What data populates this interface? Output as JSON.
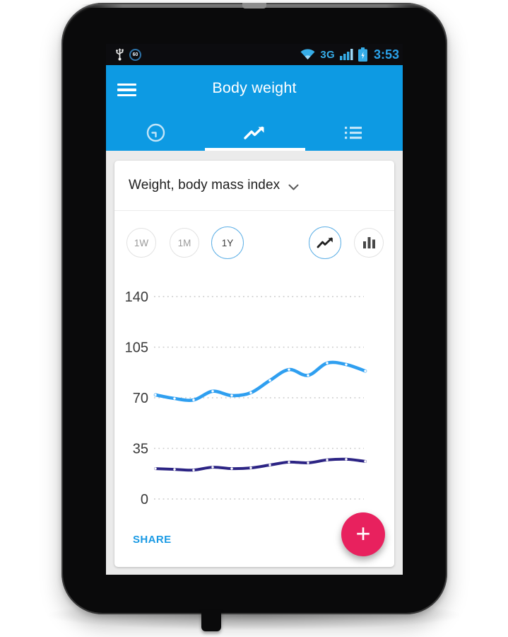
{
  "status_bar": {
    "badge": "60",
    "network_label": "3G",
    "time": "3:53",
    "icons": [
      "usb-icon",
      "circle-badge-icon",
      "wifi-icon",
      "signal-strength-icon",
      "battery-charging-icon"
    ]
  },
  "app_bar": {
    "title": "Body weight",
    "menu_icon": "hamburger-icon"
  },
  "tab_bar": {
    "tabs": [
      {
        "id": "history",
        "icon": "clock-icon",
        "active": false
      },
      {
        "id": "trend",
        "icon": "trend-line-icon",
        "active": true
      },
      {
        "id": "list",
        "icon": "list-icon",
        "active": false
      }
    ]
  },
  "card": {
    "metric_selector": {
      "label": "Weight, body mass index",
      "icon": "chevron-down-icon"
    },
    "range_buttons": [
      {
        "label": "1W",
        "selected": false
      },
      {
        "label": "1M",
        "selected": false
      },
      {
        "label": "1Y",
        "selected": true
      }
    ],
    "chart_type_toggles": [
      {
        "id": "line",
        "icon": "line-chart-icon",
        "selected": true
      },
      {
        "id": "bar",
        "icon": "bar-chart-icon",
        "selected": false
      }
    ],
    "share_label": "SHARE",
    "fab_label": "+"
  },
  "chart_data": {
    "type": "line",
    "title": "Weight, body mass index (1Y view)",
    "xlabel": "",
    "ylabel": "",
    "x_tick_labels_visible": false,
    "y_ticks": [
      0,
      35,
      70,
      105,
      140
    ],
    "ylim": [
      0,
      154
    ],
    "grid": "dotted-horizontal",
    "legend": "none",
    "points_per_series": 12,
    "series": [
      {
        "name": "Weight",
        "color": "#2f9ff0",
        "values": [
          72,
          69.5,
          68.5,
          74.5,
          71.5,
          73.5,
          82,
          89.5,
          85.5,
          94,
          93,
          88.5
        ]
      },
      {
        "name": "Body mass index",
        "color": "#2c2484",
        "values": [
          21,
          20.5,
          20,
          22,
          21,
          21.5,
          23.5,
          25.5,
          25,
          27,
          27.5,
          26
        ]
      }
    ]
  },
  "colors": {
    "app_bar_blue": "#0d9ae3",
    "status_icon_blue": "#36ade8",
    "fab_pink": "#e8215e",
    "share_blue": "#1a9ae4",
    "screen_bg": "#ebebeb",
    "weight_line": "#2f9ff0",
    "bmi_line": "#2c2484"
  }
}
